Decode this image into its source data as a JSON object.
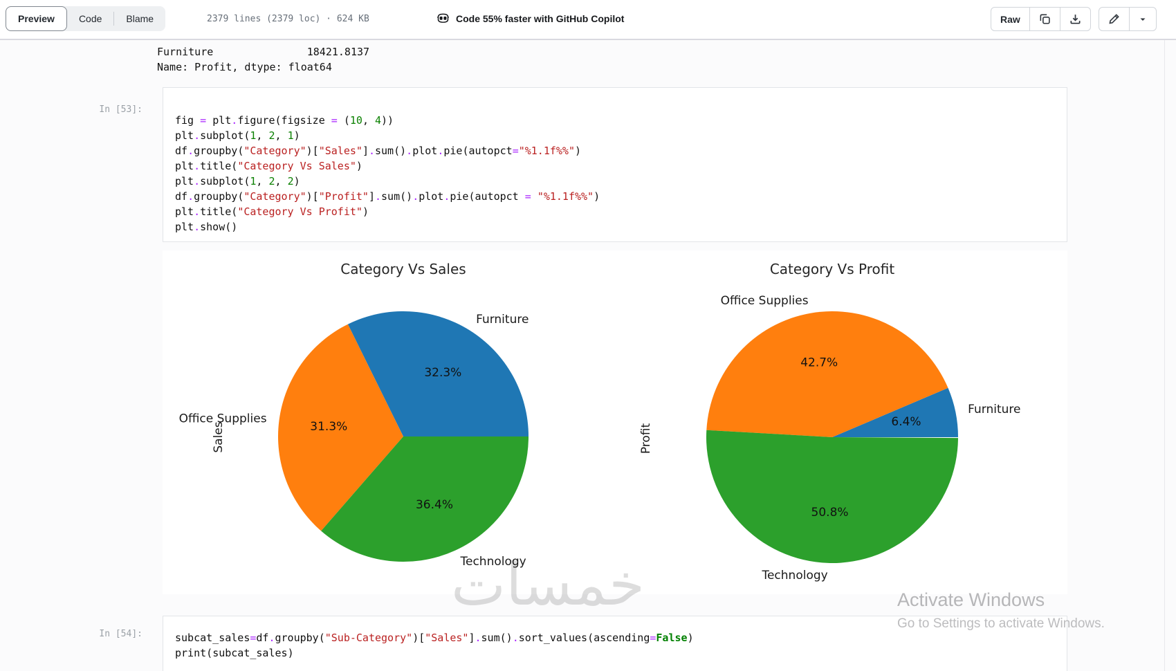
{
  "header": {
    "tabs": [
      {
        "label": "Preview",
        "active": true
      },
      {
        "label": "Code",
        "active": false
      },
      {
        "label": "Blame",
        "active": false
      }
    ],
    "meta": "2379 lines (2379 loc) · 624 KB",
    "copilot_text": "Code 55% faster with GitHub Copilot",
    "raw_label": "Raw"
  },
  "notebook": {
    "prev_output": {
      "line1": "Furniture               18421.8137",
      "line2": "Name: Profit, dtype: float64"
    },
    "cell53": {
      "prompt": "In [53]:",
      "lines": [
        [
          [
            "n",
            "fig"
          ],
          [
            "t",
            " "
          ],
          [
            "o",
            "="
          ],
          [
            "t",
            " "
          ],
          [
            "n",
            "plt"
          ],
          [
            "o",
            "."
          ],
          [
            "n",
            "figure"
          ],
          [
            "p",
            "("
          ],
          [
            "n",
            "figsize"
          ],
          [
            "t",
            " "
          ],
          [
            "o",
            "="
          ],
          [
            "t",
            " "
          ],
          [
            "p",
            "("
          ],
          [
            "m",
            "10"
          ],
          [
            "p",
            ","
          ],
          [
            "t",
            " "
          ],
          [
            "m",
            "4"
          ],
          [
            "p",
            "))"
          ]
        ],
        [
          [
            "n",
            "plt"
          ],
          [
            "o",
            "."
          ],
          [
            "n",
            "subplot"
          ],
          [
            "p",
            "("
          ],
          [
            "m",
            "1"
          ],
          [
            "p",
            ","
          ],
          [
            "t",
            " "
          ],
          [
            "m",
            "2"
          ],
          [
            "p",
            ","
          ],
          [
            "t",
            " "
          ],
          [
            "m",
            "1"
          ],
          [
            "p",
            ")"
          ]
        ],
        [
          [
            "n",
            "df"
          ],
          [
            "o",
            "."
          ],
          [
            "n",
            "groupby"
          ],
          [
            "p",
            "("
          ],
          [
            "s",
            "\"Category\""
          ],
          [
            "p",
            ")["
          ],
          [
            "s",
            "\"Sales\""
          ],
          [
            "p",
            "]"
          ],
          [
            "o",
            "."
          ],
          [
            "n",
            "sum"
          ],
          [
            "p",
            "()"
          ],
          [
            "o",
            "."
          ],
          [
            "n",
            "plot"
          ],
          [
            "o",
            "."
          ],
          [
            "n",
            "pie"
          ],
          [
            "p",
            "("
          ],
          [
            "n",
            "autopct"
          ],
          [
            "o",
            "="
          ],
          [
            "s",
            "\"%1.1f%%\""
          ],
          [
            "p",
            ")"
          ]
        ],
        [
          [
            "n",
            "plt"
          ],
          [
            "o",
            "."
          ],
          [
            "n",
            "title"
          ],
          [
            "p",
            "("
          ],
          [
            "s",
            "\"Category Vs Sales\""
          ],
          [
            "p",
            ")"
          ]
        ],
        [
          [
            "n",
            "plt"
          ],
          [
            "o",
            "."
          ],
          [
            "n",
            "subplot"
          ],
          [
            "p",
            "("
          ],
          [
            "m",
            "1"
          ],
          [
            "p",
            ","
          ],
          [
            "t",
            " "
          ],
          [
            "m",
            "2"
          ],
          [
            "p",
            ","
          ],
          [
            "t",
            " "
          ],
          [
            "m",
            "2"
          ],
          [
            "p",
            ")"
          ]
        ],
        [
          [
            "n",
            "df"
          ],
          [
            "o",
            "."
          ],
          [
            "n",
            "groupby"
          ],
          [
            "p",
            "("
          ],
          [
            "s",
            "\"Category\""
          ],
          [
            "p",
            ")["
          ],
          [
            "s",
            "\"Profit\""
          ],
          [
            "p",
            "]"
          ],
          [
            "o",
            "."
          ],
          [
            "n",
            "sum"
          ],
          [
            "p",
            "()"
          ],
          [
            "o",
            "."
          ],
          [
            "n",
            "plot"
          ],
          [
            "o",
            "."
          ],
          [
            "n",
            "pie"
          ],
          [
            "p",
            "("
          ],
          [
            "n",
            "autopct"
          ],
          [
            "t",
            " "
          ],
          [
            "o",
            "="
          ],
          [
            "t",
            " "
          ],
          [
            "s",
            "\"%1.1f%%\""
          ],
          [
            "p",
            ")"
          ]
        ],
        [
          [
            "n",
            "plt"
          ],
          [
            "o",
            "."
          ],
          [
            "n",
            "title"
          ],
          [
            "p",
            "("
          ],
          [
            "s",
            "\"Category Vs Profit\""
          ],
          [
            "p",
            ")"
          ]
        ],
        [
          [
            "n",
            "plt"
          ],
          [
            "o",
            "."
          ],
          [
            "n",
            "show"
          ],
          [
            "p",
            "()"
          ]
        ]
      ]
    },
    "cell54": {
      "prompt": "In [54]:",
      "lines": [
        [
          [
            "n",
            "subcat_sales"
          ],
          [
            "o",
            "="
          ],
          [
            "n",
            "df"
          ],
          [
            "o",
            "."
          ],
          [
            "n",
            "groupby"
          ],
          [
            "p",
            "("
          ],
          [
            "s",
            "\"Sub-Category\""
          ],
          [
            "p",
            ")["
          ],
          [
            "s",
            "\"Sales\""
          ],
          [
            "p",
            "]"
          ],
          [
            "o",
            "."
          ],
          [
            "n",
            "sum"
          ],
          [
            "p",
            "()"
          ],
          [
            "o",
            "."
          ],
          [
            "n",
            "sort_values"
          ],
          [
            "p",
            "("
          ],
          [
            "n",
            "ascending"
          ],
          [
            "o",
            "="
          ],
          [
            "k",
            "False"
          ],
          [
            "p",
            ")"
          ]
        ],
        [
          [
            "n",
            "print"
          ],
          [
            "p",
            "("
          ],
          [
            "n",
            "subcat_sales"
          ],
          [
            "p",
            ")"
          ]
        ]
      ]
    }
  },
  "chart_data": [
    {
      "type": "pie",
      "title": "Category Vs Sales",
      "ylabel": "Sales",
      "labels": [
        "Furniture",
        "Office Supplies",
        "Technology"
      ],
      "values": [
        32.3,
        31.3,
        36.4
      ],
      "pct_labels": [
        "32.3%",
        "31.3%",
        "36.4%"
      ],
      "colors": [
        "#1f77b4",
        "#ff7f0e",
        "#2ca02c"
      ],
      "start_angle": 0,
      "direction": "counterclockwise",
      "label_distance": 1.1,
      "pct_distance": 0.6
    },
    {
      "type": "pie",
      "title": "Category Vs Profit",
      "ylabel": "Profit",
      "labels": [
        "Furniture",
        "Office Supplies",
        "Technology"
      ],
      "values": [
        6.4,
        42.7,
        50.8
      ],
      "pct_labels": [
        "6.4%",
        "42.7%",
        "50.8%"
      ],
      "colors": [
        "#1f77b4",
        "#ff7f0e",
        "#2ca02c"
      ],
      "start_angle": 0,
      "direction": "counterclockwise",
      "label_distance": 1.1,
      "pct_distance": 0.6
    }
  ],
  "watermarks": {
    "khamsat": "خمسات",
    "activate_title": "Activate Windows",
    "activate_subtitle": "Go to Settings to activate Windows."
  }
}
